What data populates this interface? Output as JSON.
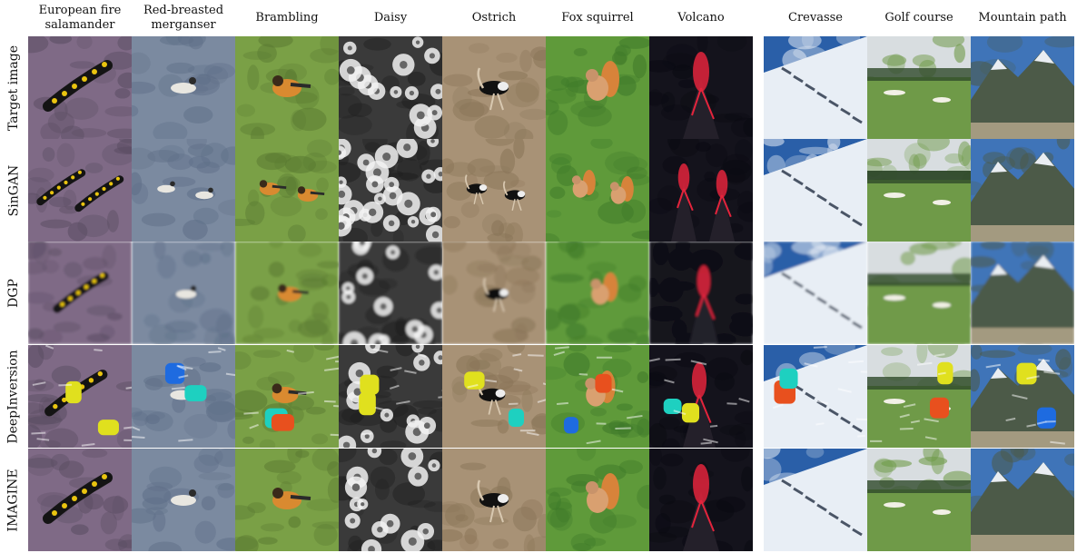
{
  "columns": [
    {
      "label": "European fire\nsalamander",
      "scene": "salamander",
      "colors": [
        "#7f6a86",
        "#5a4d62",
        "#e9c40f"
      ]
    },
    {
      "label": "Red-breasted\nmerganser",
      "scene": "duck",
      "colors": [
        "#7b8aa0",
        "#5f6f88",
        "#2b2b2b"
      ]
    },
    {
      "label": "Brambling",
      "scene": "bird",
      "colors": [
        "#7aa046",
        "#5a7a32",
        "#d98a30"
      ]
    },
    {
      "label": "Daisy",
      "scene": "daisy",
      "colors": [
        "#3a3a3a",
        "#1f1f1f",
        "#f2f2f2"
      ]
    },
    {
      "label": "Ostrich",
      "scene": "ostrich",
      "colors": [
        "#a89276",
        "#8a7558",
        "#111111"
      ]
    },
    {
      "label": "Fox squirrel",
      "scene": "squirrel",
      "colors": [
        "#5f9a3a",
        "#3f7a2a",
        "#d7833a"
      ]
    },
    {
      "label": "Volcano",
      "scene": "volcano",
      "colors": [
        "#14131c",
        "#0a0a12",
        "#e3243c"
      ]
    },
    {
      "label": "Crevasse",
      "scene": "crevasse",
      "colors": [
        "#2a5fa8",
        "#e8eef5",
        "#4a5566"
      ]
    },
    {
      "label": "Golf course",
      "scene": "golf",
      "colors": [
        "#d8dde0",
        "#6f9a48",
        "#2f4a2a"
      ]
    },
    {
      "label": "Mountain path",
      "scene": "mountain",
      "colors": [
        "#3f74b8",
        "#4c5a48",
        "#e9edf2"
      ]
    }
  ],
  "rows": [
    {
      "label": "Target image",
      "variant": "target"
    },
    {
      "label": "SinGAN",
      "variant": "singan"
    },
    {
      "label": "DGP",
      "variant": "dgp"
    },
    {
      "label": "DeepInversion",
      "variant": "deepinversion"
    },
    {
      "label": "IMAGINE",
      "variant": "imagine"
    }
  ]
}
